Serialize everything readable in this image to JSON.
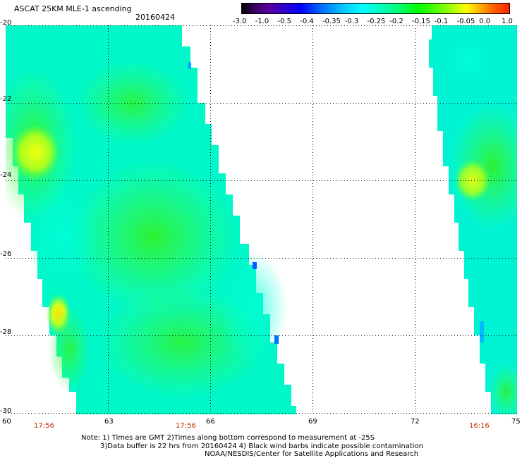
{
  "title": "ASCAT 25KM MLE-1 ascending",
  "date": "20160424",
  "colorbar": {
    "labels": [
      "-3.0",
      "-1.0",
      "-0.5",
      "-0.4",
      "-0.35",
      "-0.3",
      "-0.25",
      "-0.2",
      "-0.15",
      "-0.1",
      "-0.05",
      "0.0",
      "1.0"
    ]
  },
  "axes": {
    "lat_labels": [
      "-20",
      "-22",
      "-24",
      "-26",
      "-28",
      "-30"
    ],
    "lon_labels": [
      "60",
      "63",
      "66",
      "69",
      "72",
      "75"
    ],
    "lat_range": [
      -30,
      -20
    ],
    "lon_range": [
      60,
      75
    ],
    "grid": "dotted"
  },
  "swath_times": [
    "17:56",
    "17:56",
    "16:16"
  ],
  "notes": {
    "line1": "Note: 1) Times are GMT 2)Times along bottom correspond to measurement at -25S",
    "line2": "3)Data buffer is 22 hrs from 20160424 4) Black wind barbs indicate possible contamination",
    "line3": "NOAA/NESDIS/Center for Satellite Applications and Research"
  }
}
